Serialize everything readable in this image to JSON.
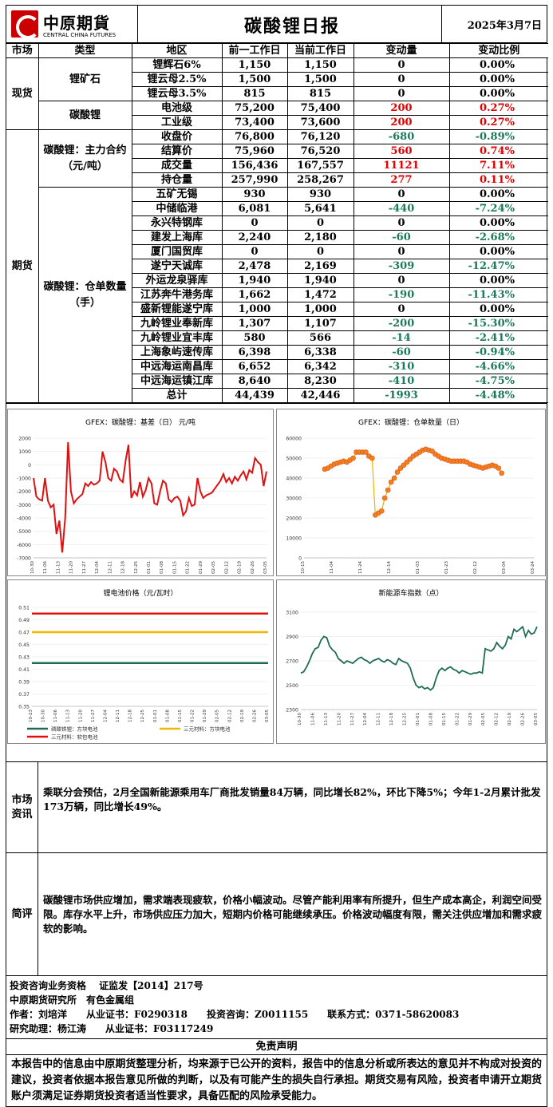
{
  "header": {
    "logo_cn": "中原期貨",
    "logo_en": "CENTRAL CHINA FUTURES",
    "title": "碳酸锂日报",
    "date": "2025年3月7日"
  },
  "table": {
    "columns": [
      "市场",
      "类型",
      "地区",
      "前一工作日",
      "当前工作日",
      "变动量",
      "变动比例"
    ],
    "groups": [
      {
        "market": "现货",
        "types": [
          {
            "type": "锂矿石",
            "rows": [
              {
                "region": "锂辉石6%",
                "prev": "1,150",
                "curr": "1,150",
                "chg": "0",
                "pct": "0.00%",
                "color": "black"
              },
              {
                "region": "锂云母2.5%",
                "prev": "1,500",
                "curr": "1,500",
                "chg": "0",
                "pct": "0.00%",
                "color": "black"
              },
              {
                "region": "锂云母3.5%",
                "prev": "815",
                "curr": "815",
                "chg": "0",
                "pct": "0.00%",
                "color": "black"
              }
            ]
          },
          {
            "type": "碳酸锂",
            "rows": [
              {
                "region": "电池级",
                "prev": "75,200",
                "curr": "75,400",
                "chg": "200",
                "pct": "0.27%",
                "color": "red"
              },
              {
                "region": "工业级",
                "prev": "73,400",
                "curr": "73,600",
                "chg": "200",
                "pct": "0.27%",
                "color": "red"
              }
            ]
          }
        ]
      },
      {
        "market": "期货",
        "types": [
          {
            "type": "碳酸锂：主力合约（元/吨）",
            "rows": [
              {
                "region": "收盘价",
                "prev": "76,800",
                "curr": "76,120",
                "chg": "-680",
                "pct": "-0.89%",
                "color": "green"
              },
              {
                "region": "结算价",
                "prev": "75,960",
                "curr": "76,520",
                "chg": "560",
                "pct": "0.74%",
                "color": "red"
              },
              {
                "region": "成交量",
                "prev": "156,436",
                "curr": "167,557",
                "chg": "11121",
                "pct": "7.11%",
                "color": "red"
              },
              {
                "region": "持仓量",
                "prev": "257,990",
                "curr": "258,267",
                "chg": "277",
                "pct": "0.11%",
                "color": "red"
              }
            ]
          },
          {
            "type": "碳酸锂：仓单数量（手）",
            "rows": [
              {
                "region": "五矿无锡",
                "prev": "930",
                "curr": "930",
                "chg": "0",
                "pct": "0.00%",
                "color": "black"
              },
              {
                "region": "中储临港",
                "prev": "6,081",
                "curr": "5,641",
                "chg": "-440",
                "pct": "-7.24%",
                "color": "green"
              },
              {
                "region": "永兴特钢库",
                "prev": "0",
                "curr": "0",
                "chg": "0",
                "pct": "0.00%",
                "color": "black"
              },
              {
                "region": "建发上海库",
                "prev": "2,240",
                "curr": "2,180",
                "chg": "-60",
                "pct": "-2.68%",
                "color": "green"
              },
              {
                "region": "厦门国贸库",
                "prev": "0",
                "curr": "0",
                "chg": "0",
                "pct": "0.00%",
                "color": "black"
              },
              {
                "region": "遂宁天诚库",
                "prev": "2,478",
                "curr": "2,169",
                "chg": "-309",
                "pct": "-12.47%",
                "color": "green"
              },
              {
                "region": "外运龙泉驿库",
                "prev": "1,940",
                "curr": "1,940",
                "chg": "0",
                "pct": "0.00%",
                "color": "black"
              },
              {
                "region": "江苏奔牛港务库",
                "prev": "1,662",
                "curr": "1,472",
                "chg": "-190",
                "pct": "-11.43%",
                "color": "green"
              },
              {
                "region": "盛新锂能遂宁库",
                "prev": "1,000",
                "curr": "1,000",
                "chg": "0",
                "pct": "0.00%",
                "color": "black"
              },
              {
                "region": "九岭锂业奉新库",
                "prev": "1,307",
                "curr": "1,107",
                "chg": "-200",
                "pct": "-15.30%",
                "color": "green"
              },
              {
                "region": "九岭锂业宜丰库",
                "prev": "580",
                "curr": "566",
                "chg": "-14",
                "pct": "-2.41%",
                "color": "green"
              },
              {
                "region": "上海象屿速传库",
                "prev": "6,398",
                "curr": "6,338",
                "chg": "-60",
                "pct": "-0.94%",
                "color": "green"
              },
              {
                "region": "中远海运南昌库",
                "prev": "6,652",
                "curr": "6,342",
                "chg": "-310",
                "pct": "-4.66%",
                "color": "green"
              },
              {
                "region": "中远海运镇江库",
                "prev": "8,640",
                "curr": "8,230",
                "chg": "-410",
                "pct": "-4.75%",
                "color": "green"
              },
              {
                "region": "总计",
                "prev": "44,439",
                "curr": "42,446",
                "chg": "-1993",
                "pct": "-4.48%",
                "color": "green"
              }
            ]
          }
        ]
      }
    ]
  },
  "chart_data": [
    {
      "type": "line",
      "title": "GFEX：碳酸锂：基差（日） 元/吨",
      "ylim": [
        -7000,
        2000
      ],
      "yticks": [
        2000,
        1000,
        0,
        -1000,
        -2000,
        -3000,
        -4000,
        -5000,
        -6000,
        -7000
      ],
      "x_ticks": [
        "10-30",
        "11-06",
        "11-13",
        "11-20",
        "11-27",
        "12-04",
        "12-11",
        "12-18",
        "12-25",
        "01-01",
        "01-08",
        "01-15",
        "01-22",
        "01-29",
        "02-05",
        "02-12",
        "02-19",
        "02-26",
        "03-05"
      ],
      "values": [
        -1000,
        -2400,
        -2600,
        -2700,
        -1000,
        -2700,
        -3200,
        -3000,
        -5200,
        -4200,
        -6600,
        -4000,
        1700,
        -2000,
        -2900,
        -2600,
        -2400,
        -2200,
        -1400,
        -1600,
        -1300,
        -1500,
        -1400,
        -1200,
        1000,
        200,
        -1000,
        -1200,
        -300,
        -500,
        -1100,
        -1300,
        300,
        1500,
        -2500,
        -2000,
        -2300,
        -1300,
        -2400,
        -1900,
        -1000,
        -1400,
        -2900,
        -3000,
        -2000,
        -1200,
        -1400,
        -2600,
        -2800,
        -2500,
        -2400,
        -2700,
        -3800,
        -3500,
        -2500,
        -3100,
        -3000,
        -1000,
        -2000,
        -2500,
        -2300,
        -2200,
        -2100,
        -1800,
        -1500,
        -1200,
        -700,
        -1300,
        -1000,
        -1400,
        -900,
        -1200,
        -800,
        -500,
        -1100,
        -400,
        -600,
        500,
        200,
        0,
        -1600,
        -500
      ]
    },
    {
      "type": "scatter",
      "title": "GFEX：碳酸锂：仓单数量（日）",
      "ylim": [
        0,
        60000
      ],
      "yticks": [
        60000,
        50000,
        40000,
        30000,
        20000,
        10000,
        0
      ],
      "x_ticks": [
        "10-15",
        "11-04",
        "11-24",
        "12-14",
        "01-03",
        "01-23",
        "02-12",
        "03-04",
        "03-24"
      ],
      "values": [
        44500,
        45000,
        46000,
        47000,
        47500,
        48000,
        48500,
        48000,
        49000,
        50000,
        53000,
        53000,
        53000,
        53000,
        51000,
        50000,
        21500,
        22500,
        23500,
        30000,
        34000,
        38000,
        40000,
        43000,
        45000,
        46500,
        48000,
        49500,
        51000,
        52000,
        53000,
        54000,
        54500,
        54000,
        53500,
        52000,
        51000,
        50000,
        49500,
        49000,
        48500,
        48500,
        48500,
        48500,
        48500,
        48000,
        47000,
        46500,
        46000,
        45500,
        45000,
        45500,
        46000,
        46500,
        46000,
        45000,
        42500
      ]
    },
    {
      "type": "line",
      "title": "锂电池价格（元/瓦时）",
      "ylim": [
        0.35,
        0.51
      ],
      "yticks": [
        "0.51",
        "0.49",
        "0.47",
        "0.45",
        "0.43",
        "0.41",
        "0.39",
        "0.37",
        "0.35"
      ],
      "x_ticks": [
        "10-23",
        "10-30",
        "11-06",
        "11-13",
        "11-20",
        "11-27",
        "12-04",
        "12-11",
        "12-18",
        "12-25",
        "01-01",
        "01-08",
        "01-15",
        "01-22",
        "01-29",
        "02-05",
        "02-12",
        "02-19",
        "02-26",
        "03-05"
      ],
      "series": [
        {
          "name": "磷酸铁锂：方块电池",
          "color": "#1f6b55",
          "value": 0.42
        },
        {
          "name": "三元材料：方块电池",
          "color": "#f0b800",
          "value": 0.47
        },
        {
          "name": "三元材料：软包电池",
          "color": "#e01010",
          "value": 0.5
        }
      ]
    },
    {
      "type": "line",
      "title": "新能源车指数（点）",
      "ylim": [
        2300,
        3100
      ],
      "yticks": [
        "3100",
        "2900",
        "2700",
        "2500",
        "2300"
      ],
      "x_ticks": [
        "10-30",
        "11-06",
        "11-13",
        "11-20",
        "11-27",
        "12-04",
        "12-11",
        "12-18",
        "12-25",
        "01-01",
        "01-08",
        "01-15",
        "01-22",
        "01-29",
        "02-05",
        "02-12",
        "02-19",
        "02-26",
        "03-05"
      ],
      "values": [
        2600,
        2610,
        2650,
        2700,
        2760,
        2800,
        2810,
        2870,
        2900,
        2890,
        2820,
        2790,
        2770,
        2720,
        2700,
        2680,
        2700,
        2690,
        2680,
        2700,
        2720,
        2730,
        2710,
        2700,
        2680,
        2700,
        2710,
        2720,
        2700,
        2690,
        2710,
        2700,
        2680,
        2670,
        2720,
        2700,
        2690,
        2680,
        2640,
        2560,
        2500,
        2480,
        2490,
        2470,
        2480,
        2460,
        2480,
        2560,
        2620,
        2640,
        2620,
        2640,
        2650,
        2630,
        2620,
        2600,
        2620,
        2610,
        2600,
        2590,
        2600,
        2600,
        2610,
        2600,
        2800,
        2790,
        2780,
        2800,
        2850,
        2820,
        2800,
        2830,
        2900,
        2880,
        2960,
        2940,
        2960,
        2980,
        2900,
        2950,
        2920,
        2930,
        2980
      ]
    }
  ],
  "legend_batt": [
    "磷酸铁锂：方块电池",
    "三元材料：方块电池",
    "三元材料：软包电池"
  ],
  "market_info": {
    "label": "市场资讯",
    "text": "乘联分会预估，2月全国新能源乘用车厂商批发销量84万辆，同比增长82%，环比下降5%；今年1-2月累计批发173万辆，同比增长49%。"
  },
  "comment": {
    "label": "简评",
    "text": "碳酸锂市场供应增加，需求端表现疲软，价格小幅波动。尽管产能利用率有所提升，但生产成本高企，利润空间受限。库存水平上升，市场供应压力加大，短期内价格可能继续承压。价格波动幅度有限，需关注供应增加和需求疲软的影响。"
  },
  "footer": {
    "line1": "投资咨询业务资格　 证监发【2014】217号",
    "line2": "中原期货研究所　有色金属组",
    "line3": "作者：刘培洋　　从业证书：F0290318　　投资咨询：Z0011155　　联系方式：0371-58620083",
    "line4": "研究助理：杨江涛　　从业证书：F03117249"
  },
  "disclaimer": {
    "title": "免责声明",
    "text": "本报告中的信息由中原期货整理分析，均来源于已公开的资料，报告中的信息分析或所表达的意见并不构成对投资的建议，投资者依据本报告意见所做的判断，以及有可能产生的损失自行承担。期货交易有风险，投资者申请开立期货账户须满足证券期货投资者适当性要求，具备匹配的风险承受能力。"
  }
}
